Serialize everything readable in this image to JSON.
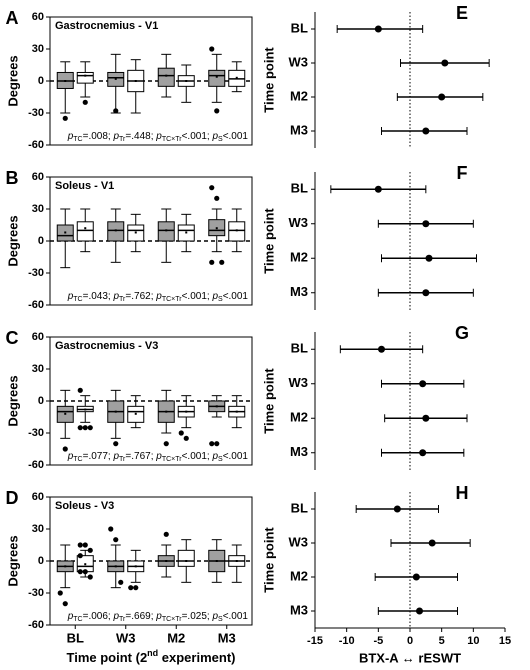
{
  "chart_data": [
    {
      "type": "box",
      "letter": "A",
      "title": "Gastrocnemius - V1",
      "ylabel": "Degrees",
      "ylim": [
        -60,
        60
      ],
      "yticks": [
        -60,
        -30,
        0,
        30,
        60
      ],
      "hline": 0,
      "annotation": [
        {
          "sym": "p",
          "sub": "TC",
          "rest": "=.008; "
        },
        {
          "sym": "p",
          "sub": "Tr",
          "rest": "=.448; "
        },
        {
          "sym": "p",
          "sub": "TC×Tr",
          "rest": "<.001; "
        },
        {
          "sym": "p",
          "sub": "S",
          "rest": "<.001"
        }
      ],
      "series": [
        {
          "color": "#a0a0a0",
          "min": [
            -30,
            -30,
            -15,
            -20
          ],
          "q1": [
            -7,
            -5,
            -5,
            -5
          ],
          "median": [
            0,
            3,
            5,
            5
          ],
          "q3": [
            8,
            8,
            12,
            10
          ],
          "max": [
            18,
            25,
            25,
            25
          ],
          "mean": [
            0,
            2,
            5,
            4
          ],
          "outliers": [
            [
              -35
            ],
            [
              -28
            ],
            [],
            [
              30,
              -28
            ]
          ]
        },
        {
          "color": "#ffffff",
          "min": [
            -15,
            -30,
            -20,
            -10
          ],
          "q1": [
            -2,
            -10,
            -5,
            -5
          ],
          "median": [
            5,
            0,
            0,
            2
          ],
          "q3": [
            8,
            10,
            5,
            10
          ],
          "max": [
            18,
            20,
            15,
            18
          ],
          "mean": [
            5,
            0,
            0,
            3
          ],
          "outliers": [
            [
              -20
            ],
            [],
            [],
            []
          ]
        }
      ]
    },
    {
      "type": "box",
      "letter": "B",
      "title": "Soleus - V1",
      "ylabel": "Degrees",
      "ylim": [
        -60,
        60
      ],
      "yticks": [
        -60,
        -30,
        0,
        30,
        60
      ],
      "hline": 0,
      "annotation": [
        {
          "sym": "p",
          "sub": "TC",
          "rest": "=.043; "
        },
        {
          "sym": "p",
          "sub": "Tr",
          "rest": "=.762; "
        },
        {
          "sym": "p",
          "sub": "TC×Tr",
          "rest": "<.001; "
        },
        {
          "sym": "p",
          "sub": "S",
          "rest": "<.001"
        }
      ],
      "series": [
        {
          "color": "#a0a0a0",
          "min": [
            -25,
            -20,
            -20,
            -10
          ],
          "q1": [
            0,
            0,
            0,
            5
          ],
          "median": [
            5,
            10,
            10,
            10
          ],
          "q3": [
            15,
            18,
            18,
            20
          ],
          "max": [
            30,
            30,
            30,
            30
          ],
          "mean": [
            8,
            10,
            10,
            12
          ],
          "outliers": [
            [],
            [],
            [],
            [
              50,
              40,
              -20,
              -20
            ]
          ]
        },
        {
          "color": "#ffffff",
          "min": [
            -10,
            -10,
            -10,
            -10
          ],
          "q1": [
            0,
            0,
            0,
            0
          ],
          "median": [
            10,
            10,
            10,
            10
          ],
          "q3": [
            18,
            15,
            15,
            18
          ],
          "max": [
            30,
            25,
            25,
            30
          ],
          "mean": [
            12,
            8,
            8,
            10
          ],
          "outliers": [
            [],
            [],
            [],
            []
          ]
        }
      ]
    },
    {
      "type": "box",
      "letter": "C",
      "title": "Gastrocnemius - V3",
      "ylabel": "Degrees",
      "ylim": [
        -60,
        60
      ],
      "yticks": [
        -60,
        -30,
        0,
        30,
        60
      ],
      "hline": 0,
      "annotation": [
        {
          "sym": "p",
          "sub": "TC",
          "rest": "=.077; "
        },
        {
          "sym": "p",
          "sub": "Tr",
          "rest": "=.767; "
        },
        {
          "sym": "p",
          "sub": "TC×Tr",
          "rest": "<.001; "
        },
        {
          "sym": "p",
          "sub": "S",
          "rest": "<.001"
        }
      ],
      "series": [
        {
          "color": "#a0a0a0",
          "min": [
            -35,
            -35,
            -30,
            -15
          ],
          "q1": [
            -20,
            -20,
            -20,
            -10
          ],
          "median": [
            -10,
            -10,
            -10,
            -5
          ],
          "q3": [
            -5,
            0,
            0,
            0
          ],
          "max": [
            10,
            10,
            10,
            5
          ],
          "mean": [
            -12,
            -10,
            -10,
            -5
          ],
          "outliers": [
            [
              -45
            ],
            [
              -40
            ],
            [
              -40
            ],
            [
              -40,
              -40
            ]
          ]
        },
        {
          "color": "#ffffff",
          "min": [
            -20,
            -25,
            -25,
            -25
          ],
          "q1": [
            -10,
            -20,
            -15,
            -15
          ],
          "median": [
            -8,
            -10,
            -10,
            -10
          ],
          "q3": [
            -5,
            -5,
            -5,
            -5
          ],
          "max": [
            5,
            5,
            5,
            5
          ],
          "mean": [
            -8,
            -12,
            -10,
            -10
          ],
          "outliers": [
            [
              10,
              -25,
              -25,
              -25
            ],
            [],
            [
              -30,
              -35
            ],
            []
          ]
        }
      ]
    },
    {
      "type": "box",
      "letter": "D",
      "title": "Soleus - V3",
      "ylabel": "Degrees",
      "ylim": [
        -60,
        60
      ],
      "yticks": [
        -60,
        -30,
        0,
        30,
        60
      ],
      "hline": 0,
      "categories": [
        "BL",
        "W3",
        "M2",
        "M3"
      ],
      "xlabel": "Time point (2",
      "xlabel_sup": "nd",
      "xlabel_end": " experiment)",
      "annotation": [
        {
          "sym": "p",
          "sub": "TC",
          "rest": "=.006; "
        },
        {
          "sym": "p",
          "sub": "Tr",
          "rest": "=.669; "
        },
        {
          "sym": "p",
          "sub": "TC×Tr",
          "rest": "=.025; "
        },
        {
          "sym": "p",
          "sub": "S",
          "rest": "<.001"
        }
      ],
      "series": [
        {
          "color": "#a0a0a0",
          "min": [
            -25,
            -25,
            -15,
            -20
          ],
          "q1": [
            -10,
            -10,
            -5,
            -10
          ],
          "median": [
            -5,
            -5,
            0,
            0
          ],
          "q3": [
            0,
            0,
            5,
            10
          ],
          "max": [
            15,
            15,
            15,
            20
          ],
          "mean": [
            -5,
            -5,
            0,
            0
          ],
          "outliers": [
            [
              -30,
              -40
            ],
            [
              30,
              20,
              -20
            ],
            [
              25
            ],
            []
          ]
        },
        {
          "color": "#ffffff",
          "min": [
            -15,
            -20,
            -20,
            -20
          ],
          "q1": [
            -10,
            -10,
            -5,
            -5
          ],
          "median": [
            -5,
            -5,
            0,
            0
          ],
          "q3": [
            5,
            0,
            10,
            5
          ],
          "max": [
            10,
            10,
            20,
            15
          ],
          "mean": [
            -3,
            -5,
            0,
            0
          ],
          "outliers": [
            [
              15,
              15,
              10,
              5,
              -10,
              -15,
              -10
            ],
            [
              -25,
              -25
            ],
            [],
            []
          ]
        }
      ]
    },
    {
      "type": "forest",
      "letter": "E",
      "ylabel": "Time point",
      "xlim": [
        -15,
        15
      ],
      "vline": 0,
      "color": "#000000",
      "categories": [
        "BL",
        "W3",
        "M2",
        "M3"
      ],
      "values": [
        -5,
        5.5,
        5,
        2.5
      ],
      "lower": [
        -11.5,
        -1.5,
        -2,
        -4.5
      ],
      "upper": [
        2,
        12.5,
        11.5,
        9
      ]
    },
    {
      "type": "forest",
      "letter": "F",
      "ylabel": "Time point",
      "xlim": [
        -15,
        15
      ],
      "vline": 0,
      "color": "#000000",
      "categories": [
        "BL",
        "W3",
        "M2",
        "M3"
      ],
      "values": [
        -5,
        2.5,
        3,
        2.5
      ],
      "lower": [
        -12.5,
        -5,
        -4.5,
        -5
      ],
      "upper": [
        2.5,
        10,
        10.5,
        10
      ]
    },
    {
      "type": "forest",
      "letter": "G",
      "ylabel": "Time point",
      "xlim": [
        -15,
        15
      ],
      "vline": 0,
      "color": "#000000",
      "categories": [
        "BL",
        "W3",
        "M2",
        "M3"
      ],
      "values": [
        -4.5,
        2,
        2.5,
        2
      ],
      "lower": [
        -11,
        -4.5,
        -4,
        -4.5
      ],
      "upper": [
        2,
        8.5,
        9,
        8.5
      ]
    },
    {
      "type": "forest",
      "letter": "H",
      "ylabel": "Time point",
      "xlim": [
        -15,
        15
      ],
      "vline": 0,
      "color": "#000000",
      "xticks": [
        -15,
        -10,
        -5,
        0,
        5,
        10,
        15
      ],
      "xlabel": "BTX-A  ↔  rESWT",
      "categories": [
        "BL",
        "W3",
        "M2",
        "M3"
      ],
      "values": [
        -2,
        3.5,
        1,
        1.5
      ],
      "lower": [
        -8.5,
        -3,
        -5.5,
        -5
      ],
      "upper": [
        4.5,
        9.5,
        7.5,
        7.5
      ]
    }
  ]
}
